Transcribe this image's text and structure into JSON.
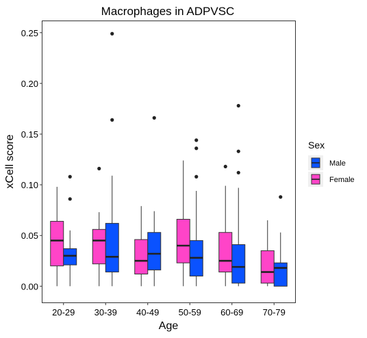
{
  "chart_data": {
    "type": "boxplot",
    "title": "Macrophages in ADPVSC",
    "xlabel": "Age",
    "ylabel": "xCell score",
    "categories": [
      "20-29",
      "30-39",
      "40-49",
      "50-59",
      "60-69",
      "70-79"
    ],
    "ylim": [
      -0.016,
      0.262
    ],
    "yticks": [
      0.0,
      0.05,
      0.1,
      0.15,
      0.2,
      0.25
    ],
    "ytick_labels": [
      "0.00",
      "0.05",
      "0.10",
      "0.15",
      "0.20",
      "0.25"
    ],
    "grid": false,
    "legend": {
      "title": "Sex",
      "placement": "right",
      "entries": [
        {
          "name": "Male",
          "color": "#0a52ff"
        },
        {
          "name": "Female",
          "color": "#ff44c8"
        }
      ]
    },
    "series": [
      {
        "name": "Female",
        "color": "#ff44c8",
        "boxes": [
          {
            "category": "20-29",
            "min": 0.0,
            "q1": 0.02,
            "median": 0.045,
            "q3": 0.064,
            "max": 0.098,
            "outliers": []
          },
          {
            "category": "30-39",
            "min": 0.0,
            "q1": 0.022,
            "median": 0.045,
            "q3": 0.056,
            "max": 0.073,
            "outliers": [
              0.116
            ]
          },
          {
            "category": "40-49",
            "min": 0.0,
            "q1": 0.012,
            "median": 0.025,
            "q3": 0.046,
            "max": 0.079,
            "outliers": []
          },
          {
            "category": "50-59",
            "min": 0.0,
            "q1": 0.023,
            "median": 0.04,
            "q3": 0.066,
            "max": 0.124,
            "outliers": []
          },
          {
            "category": "60-69",
            "min": 0.0,
            "q1": 0.014,
            "median": 0.025,
            "q3": 0.053,
            "max": 0.099,
            "outliers": [
              0.118
            ]
          },
          {
            "category": "70-79",
            "min": 0.0,
            "q1": 0.003,
            "median": 0.014,
            "q3": 0.035,
            "max": 0.065,
            "outliers": []
          }
        ]
      },
      {
        "name": "Male",
        "color": "#0a52ff",
        "boxes": [
          {
            "category": "20-29",
            "min": 0.0,
            "q1": 0.021,
            "median": 0.03,
            "q3": 0.037,
            "max": 0.055,
            "outliers": [
              0.086,
              0.108
            ]
          },
          {
            "category": "30-39",
            "min": 0.0,
            "q1": 0.014,
            "median": 0.029,
            "q3": 0.062,
            "max": 0.109,
            "outliers": [
              0.164,
              0.249
            ]
          },
          {
            "category": "40-49",
            "min": 0.0,
            "q1": 0.016,
            "median": 0.032,
            "q3": 0.053,
            "max": 0.074,
            "outliers": [
              0.166
            ]
          },
          {
            "category": "50-59",
            "min": 0.0,
            "q1": 0.01,
            "median": 0.028,
            "q3": 0.045,
            "max": 0.094,
            "outliers": [
              0.108,
              0.136,
              0.144
            ]
          },
          {
            "category": "60-69",
            "min": 0.0,
            "q1": 0.003,
            "median": 0.019,
            "q3": 0.041,
            "max": 0.097,
            "outliers": [
              0.112,
              0.133,
              0.178
            ]
          },
          {
            "category": "70-79",
            "min": 0.0,
            "q1": 0.0,
            "median": 0.018,
            "q3": 0.023,
            "max": 0.053,
            "outliers": [
              0.088
            ]
          }
        ]
      }
    ]
  }
}
